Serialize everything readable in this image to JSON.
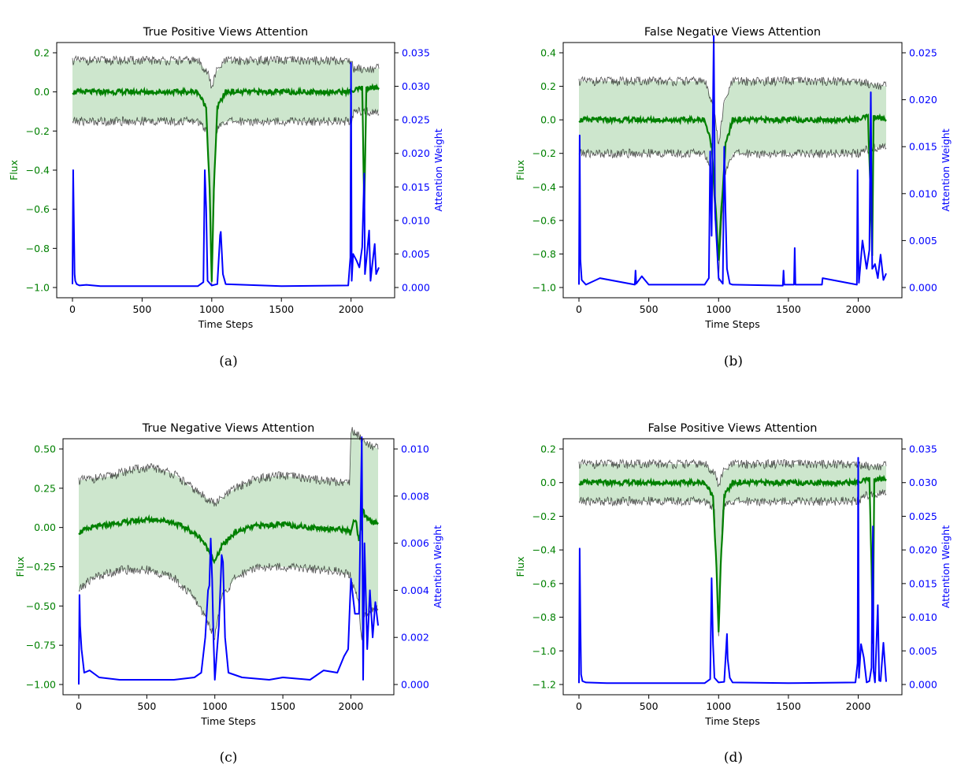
{
  "figure": {
    "captions": [
      "(a)",
      "(b)",
      "(c)",
      "(d)"
    ]
  },
  "colors": {
    "flux_axis": "#008000",
    "attention_axis": "#0000ff",
    "band_fill": "#cde6cd",
    "bound_lines": "#1a1a1a",
    "axes": "#000000"
  },
  "chart_data": [
    {
      "type": "line",
      "title": "True Positive Views Attention",
      "xlabel": "Time Steps",
      "ylabel_left": "Flux",
      "ylabel_right": "Attention Weight",
      "xlim": [
        0,
        2200
      ],
      "xticks": [
        "0",
        "500",
        "1000",
        "1500",
        "2000"
      ],
      "y_left_lim": [
        -1.0,
        0.2
      ],
      "y_left_ticks": [
        "−1.0",
        "−0.8",
        "−0.6",
        "−0.4",
        "−0.2",
        "0.0",
        "0.2"
      ],
      "y_right_lim": [
        0.0,
        0.035
      ],
      "y_right_ticks": [
        "0.000",
        "0.005",
        "0.010",
        "0.015",
        "0.020",
        "0.025",
        "0.030",
        "0.035"
      ],
      "series": [
        {
          "name": "",
          "role": "flux_mean",
          "x": [
            0,
            400,
            900,
            960,
            985,
            1000,
            1015,
            1040,
            1100,
            1600,
            2000,
            2080,
            2095,
            2110,
            2200
          ],
          "y": [
            0.0,
            0.0,
            0.0,
            -0.08,
            -0.5,
            -0.98,
            -0.5,
            -0.08,
            0.0,
            0.0,
            0.0,
            0.02,
            -0.6,
            0.02,
            0.02
          ]
        },
        {
          "name": "",
          "role": "upper_bound",
          "x": [
            0,
            900,
            970,
            1000,
            1030,
            1100,
            2000,
            2020,
            2200
          ],
          "y": [
            0.16,
            0.16,
            0.1,
            0.02,
            0.1,
            0.16,
            0.16,
            0.12,
            0.12
          ]
        },
        {
          "name": "",
          "role": "lower_bound",
          "x": [
            0,
            900,
            970,
            1000,
            1030,
            1100,
            2000,
            2020,
            2200
          ],
          "y": [
            -0.15,
            -0.15,
            -0.2,
            -0.98,
            -0.2,
            -0.15,
            -0.15,
            -0.1,
            -0.1
          ]
        },
        {
          "name": "",
          "role": "attention",
          "x": [
            0,
            5,
            10,
            15,
            20,
            30,
            50,
            100,
            200,
            500,
            900,
            940,
            950,
            960,
            970,
            1000,
            1040,
            1060,
            1065,
            1080,
            1100,
            1500,
            1980,
            1995,
            2000,
            2005,
            2015,
            2040,
            2060,
            2080,
            2095,
            2100,
            2110,
            2130,
            2140,
            2150,
            2170,
            2180,
            2200
          ],
          "y": [
            0.0005,
            0.0175,
            0.0095,
            0.002,
            0.001,
            0.0005,
            0.0003,
            0.0004,
            0.0002,
            0.0002,
            0.0002,
            0.0008,
            0.0175,
            0.012,
            0.001,
            0.0003,
            0.0005,
            0.0078,
            0.0083,
            0.002,
            0.0005,
            0.0002,
            0.0003,
            0.0045,
            0.0335,
            0.001,
            0.005,
            0.004,
            0.003,
            0.006,
            0.017,
            0.002,
            0.004,
            0.0085,
            0.001,
            0.003,
            0.0065,
            0.002,
            0.003
          ]
        }
      ]
    },
    {
      "type": "line",
      "title": "False Negative Views Attention",
      "xlabel": "Time Steps",
      "ylabel_left": "Flux",
      "ylabel_right": "Attention Weight",
      "xlim": [
        0,
        2200
      ],
      "xticks": [
        "0",
        "500",
        "1000",
        "1500",
        "2000"
      ],
      "y_left_lim": [
        -1.0,
        0.4
      ],
      "y_left_ticks": [
        "−1.0",
        "−0.8",
        "−0.6",
        "−0.4",
        "−0.2",
        "0.0",
        "0.2",
        "0.4"
      ],
      "y_right_lim": [
        0.0,
        0.025
      ],
      "y_right_ticks": [
        "0.000",
        "0.005",
        "0.010",
        "0.015",
        "0.020",
        "0.025"
      ],
      "series": [
        {
          "name": "",
          "role": "flux_mean",
          "x": [
            0,
            400,
            900,
            950,
            985,
            1000,
            1015,
            1050,
            1100,
            1600,
            2000,
            2070,
            2090,
            2100,
            2110,
            2200
          ],
          "y": [
            0.0,
            0.0,
            0.0,
            -0.15,
            -0.6,
            -0.85,
            -0.6,
            -0.15,
            0.0,
            0.0,
            0.0,
            0.02,
            -0.5,
            -0.8,
            0.02,
            0.0
          ]
        },
        {
          "name": "",
          "role": "upper_bound",
          "x": [
            0,
            900,
            960,
            1000,
            1040,
            1100,
            2000,
            2050,
            2200
          ],
          "y": [
            0.23,
            0.23,
            0.1,
            -0.15,
            0.1,
            0.23,
            0.23,
            0.22,
            0.2
          ]
        },
        {
          "name": "",
          "role": "lower_bound",
          "x": [
            0,
            900,
            960,
            1000,
            1040,
            1100,
            2000,
            2050,
            2200
          ],
          "y": [
            -0.2,
            -0.2,
            -0.35,
            -0.95,
            -0.35,
            -0.2,
            -0.2,
            -0.18,
            -0.15
          ]
        },
        {
          "name": "",
          "role": "attention",
          "x": [
            0,
            5,
            10,
            20,
            50,
            150,
            400,
            405,
            410,
            450,
            500,
            900,
            930,
            940,
            950,
            965,
            975,
            1000,
            1030,
            1040,
            1050,
            1060,
            1080,
            1100,
            1460,
            1465,
            1470,
            1540,
            1545,
            1550,
            1740,
            1745,
            1990,
            1995,
            2000,
            2005,
            2030,
            2060,
            2080,
            2090,
            2100,
            2120,
            2140,
            2160,
            2180,
            2200
          ],
          "y": [
            0.0003,
            0.0162,
            0.003,
            0.0008,
            0.0003,
            0.001,
            0.0003,
            0.0018,
            0.0004,
            0.0012,
            0.0003,
            0.0003,
            0.001,
            0.0145,
            0.0055,
            0.0268,
            0.008,
            0.001,
            0.0004,
            0.015,
            0.008,
            0.002,
            0.0004,
            0.0003,
            0.0002,
            0.0018,
            0.0003,
            0.0003,
            0.0042,
            0.0003,
            0.0003,
            0.001,
            0.0003,
            0.0125,
            0.004,
            0.0005,
            0.005,
            0.002,
            0.004,
            0.0208,
            0.002,
            0.0025,
            0.001,
            0.0035,
            0.0008,
            0.0015
          ]
        }
      ]
    },
    {
      "type": "line",
      "title": "True Negative Views Attention",
      "xlabel": "Time Steps",
      "ylabel_left": "Flux",
      "ylabel_right": "Attention Weight",
      "xlim": [
        0,
        2200
      ],
      "xticks": [
        "0",
        "500",
        "1000",
        "1500",
        "2000"
      ],
      "y_left_lim": [
        -1.0,
        0.5
      ],
      "y_left_ticks": [
        "−1.00",
        "−0.75",
        "−0.50",
        "−0.25",
        "0.00",
        "0.25",
        "0.50"
      ],
      "y_right_lim": [
        0.0,
        0.01
      ],
      "y_right_ticks": [
        "0.000",
        "0.002",
        "0.004",
        "0.006",
        "0.008",
        "0.010"
      ],
      "series": [
        {
          "name": "",
          "role": "flux_mean",
          "x": [
            0,
            100,
            300,
            500,
            600,
            700,
            800,
            900,
            970,
            1000,
            1050,
            1150,
            1300,
            1500,
            1700,
            1900,
            1980,
            2000,
            2020,
            2040,
            2060,
            2090,
            2100,
            2140,
            2150,
            2200
          ],
          "y": [
            -0.03,
            0.0,
            0.03,
            0.05,
            0.05,
            0.03,
            -0.01,
            -0.07,
            -0.17,
            -0.22,
            -0.12,
            -0.03,
            0.01,
            0.02,
            0.0,
            -0.01,
            -0.02,
            -0.04,
            0.05,
            0.02,
            -0.1,
            0.12,
            0.08,
            0.05,
            0.03,
            0.03
          ]
        },
        {
          "name": "",
          "role": "upper_bound",
          "x": [
            0,
            200,
            400,
            550,
            700,
            850,
            1000,
            1150,
            1300,
            1500,
            1700,
            1900,
            1990,
            2000,
            2010,
            2100,
            2200
          ],
          "y": [
            0.3,
            0.32,
            0.37,
            0.38,
            0.34,
            0.24,
            0.15,
            0.25,
            0.31,
            0.33,
            0.31,
            0.29,
            0.29,
            0.6,
            0.62,
            0.55,
            0.5
          ]
        },
        {
          "name": "",
          "role": "lower_bound",
          "x": [
            0,
            100,
            300,
            500,
            700,
            850,
            950,
            1000,
            1050,
            1150,
            1300,
            1500,
            1700,
            1900,
            1990,
            2050,
            2080,
            2100,
            2200
          ],
          "y": [
            -0.4,
            -0.32,
            -0.27,
            -0.27,
            -0.32,
            -0.45,
            -0.6,
            -0.7,
            -0.45,
            -0.32,
            -0.25,
            -0.25,
            -0.26,
            -0.28,
            -0.3,
            -0.45,
            -0.7,
            -0.55,
            -0.5
          ]
        },
        {
          "name": "",
          "role": "attention",
          "x": [
            0,
            5,
            10,
            20,
            40,
            80,
            150,
            300,
            500,
            700,
            850,
            900,
            930,
            950,
            960,
            970,
            980,
            990,
            1000,
            1030,
            1050,
            1060,
            1075,
            1100,
            1200,
            1400,
            1500,
            1700,
            1800,
            1900,
            1950,
            1980,
            1990,
            2000,
            2030,
            2060,
            2080,
            2090,
            2100,
            2120,
            2140,
            2160,
            2180,
            2200
          ],
          "y": [
            0.0,
            0.0038,
            0.0025,
            0.0015,
            0.0005,
            0.0006,
            0.0003,
            0.0002,
            0.0002,
            0.0002,
            0.0003,
            0.0005,
            0.002,
            0.004,
            0.0042,
            0.0062,
            0.0045,
            0.002,
            0.0002,
            0.0025,
            0.0055,
            0.0052,
            0.002,
            0.0005,
            0.0003,
            0.0002,
            0.0003,
            0.0002,
            0.0006,
            0.0005,
            0.0012,
            0.0015,
            0.003,
            0.0045,
            0.003,
            0.003,
            0.0105,
            0.0002,
            0.006,
            0.0015,
            0.004,
            0.002,
            0.0035,
            0.0025
          ]
        }
      ]
    },
    {
      "type": "line",
      "title": "False Positive Views Attention",
      "xlabel": "Time Steps",
      "ylabel_left": "Flux",
      "ylabel_right": "Attention Weight",
      "xlim": [
        0,
        2200
      ],
      "xticks": [
        "0",
        "500",
        "1000",
        "1500",
        "2000"
      ],
      "y_left_lim": [
        -1.2,
        0.2
      ],
      "y_left_ticks": [
        "−1.2",
        "−1.0",
        "−0.8",
        "−0.6",
        "−0.4",
        "−0.2",
        "0.0",
        "0.2"
      ],
      "y_right_lim": [
        0.0,
        0.035
      ],
      "y_right_ticks": [
        "0.000",
        "0.005",
        "0.010",
        "0.015",
        "0.020",
        "0.025",
        "0.030",
        "0.035"
      ],
      "series": [
        {
          "name": "",
          "role": "flux_mean",
          "x": [
            0,
            400,
            900,
            960,
            985,
            1000,
            1015,
            1040,
            1100,
            1600,
            2000,
            2080,
            2095,
            2105,
            2115,
            2200
          ],
          "y": [
            0.0,
            0.0,
            0.0,
            -0.08,
            -0.5,
            -0.9,
            -0.5,
            -0.08,
            0.0,
            0.0,
            0.0,
            0.02,
            -0.5,
            -0.95,
            0.02,
            0.02
          ]
        },
        {
          "name": "",
          "role": "upper_bound",
          "x": [
            0,
            900,
            970,
            1000,
            1030,
            1100,
            2000,
            2040,
            2200
          ],
          "y": [
            0.11,
            0.11,
            0.06,
            -0.02,
            0.06,
            0.11,
            0.11,
            0.1,
            0.1
          ]
        },
        {
          "name": "",
          "role": "lower_bound",
          "x": [
            0,
            900,
            970,
            1000,
            1030,
            1100,
            2000,
            2040,
            2200
          ],
          "y": [
            -0.11,
            -0.11,
            -0.15,
            -0.9,
            -0.15,
            -0.11,
            -0.11,
            -0.08,
            -0.05
          ]
        },
        {
          "name": "",
          "role": "attention",
          "x": [
            0,
            5,
            10,
            15,
            25,
            50,
            200,
            500,
            900,
            940,
            950,
            960,
            970,
            1000,
            1040,
            1060,
            1065,
            1080,
            1100,
            1500,
            1980,
            1995,
            2000,
            2005,
            2020,
            2040,
            2060,
            2080,
            2095,
            2105,
            2110,
            2120,
            2140,
            2150,
            2160,
            2180,
            2200
          ],
          "y": [
            0.0002,
            0.0202,
            0.0097,
            0.0015,
            0.0005,
            0.0003,
            0.0002,
            0.0002,
            0.0002,
            0.0008,
            0.0158,
            0.006,
            0.001,
            0.0003,
            0.0004,
            0.0075,
            0.0038,
            0.001,
            0.0003,
            0.0002,
            0.0003,
            0.0032,
            0.0337,
            0.001,
            0.006,
            0.004,
            0.0003,
            0.0005,
            0.0025,
            0.0235,
            0.002,
            0.0003,
            0.0118,
            0.0006,
            0.0005,
            0.0062,
            0.0004
          ]
        }
      ]
    }
  ]
}
